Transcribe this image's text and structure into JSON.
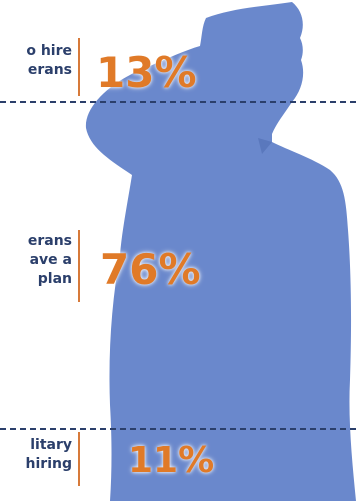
{
  "sections": [
    {
      "label_lines": [
        "o hire",
        "erans"
      ],
      "percent": "13%"
    },
    {
      "label_lines": [
        "erans",
        "ave a",
        "plan"
      ],
      "percent": "76%"
    },
    {
      "label_lines": [
        "litary",
        "hiring"
      ],
      "percent": "11%"
    }
  ],
  "colors": {
    "silhouette": "#6a88cc",
    "text": "#2b3f6b",
    "accent": "#e07a28",
    "divider": "#2b3f6b"
  }
}
